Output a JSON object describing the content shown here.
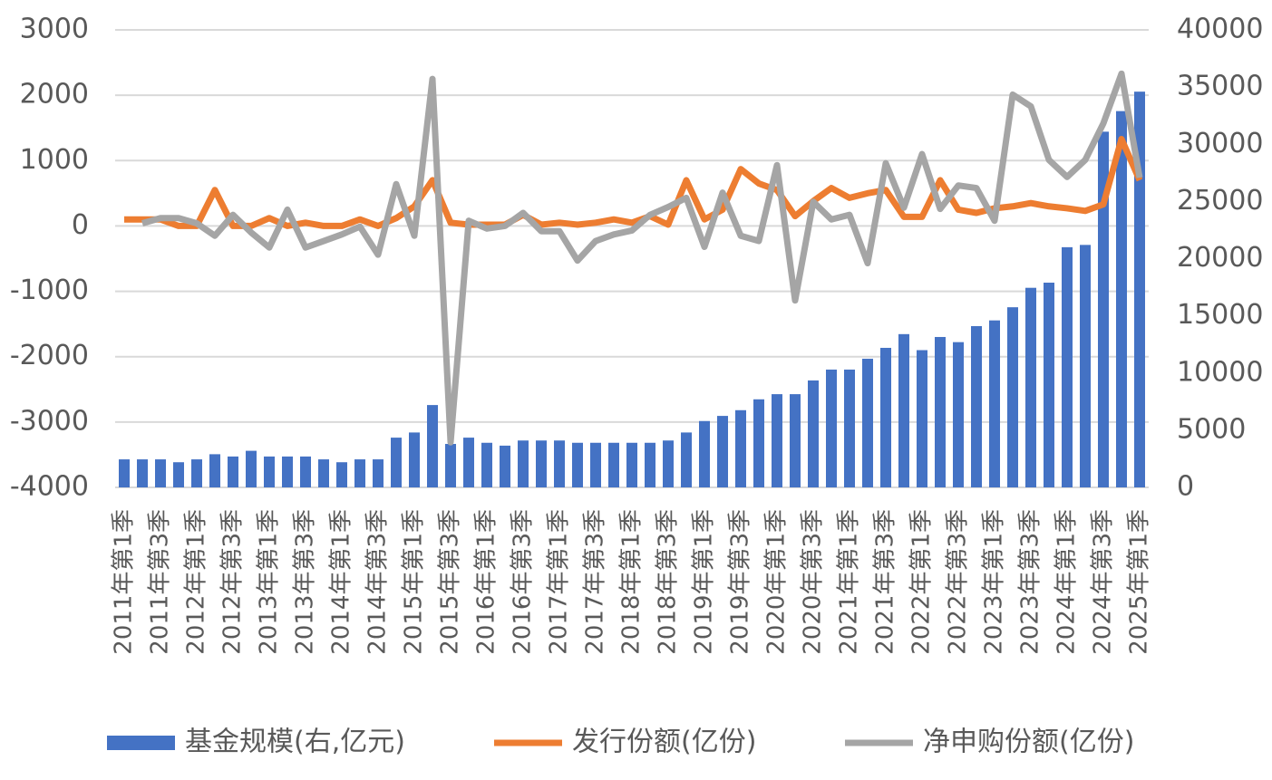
{
  "chart_data": {
    "type": "bar",
    "categories": [
      "2011年第1季",
      null,
      "2011年第3季",
      null,
      "2012年第1季",
      null,
      "2012年第3季",
      null,
      "2013年第1季",
      null,
      "2013年第3季",
      null,
      "2014年第1季",
      null,
      "2014年第3季",
      null,
      "2015年第1季",
      null,
      "2015年第3季",
      null,
      "2016年第1季",
      null,
      "2016年第3季",
      null,
      "2017年第1季",
      null,
      "2017年第3季",
      null,
      "2018年第1季",
      null,
      "2018年第3季",
      null,
      "2019年第1季",
      null,
      "2019年第3季",
      null,
      "2020年第1季",
      null,
      "2020年第3季",
      null,
      "2021年第1季",
      null,
      "2021年第3季",
      null,
      "2022年第1季",
      null,
      "2022年第3季",
      null,
      "2023年第1季",
      null,
      "2023年第3季",
      null,
      "2024年第1季",
      null,
      "2024年第3季",
      null,
      "2025年第1季"
    ],
    "series": [
      {
        "name": "基金规模(右,亿元)",
        "type": "bar",
        "axis": "y2",
        "color": "#4472c4",
        "values": [
          2450,
          2450,
          2450,
          2200,
          2450,
          2900,
          2700,
          3200,
          2700,
          2700,
          2700,
          2450,
          2200,
          2450,
          2450,
          4350,
          4800,
          7200,
          3800,
          4350,
          3900,
          3650,
          4100,
          4100,
          4100,
          3900,
          3900,
          3900,
          3900,
          3900,
          4100,
          4800,
          5800,
          6250,
          6750,
          7700,
          8150,
          8150,
          9350,
          10300,
          10300,
          11250,
          12200,
          13400,
          12000,
          13150,
          12700,
          14100,
          14600,
          15750,
          17450,
          17900,
          21000,
          21200,
          31100,
          32900,
          34600
        ]
      },
      {
        "name": "发行份额(亿份)",
        "type": "line",
        "color": "#ed7d31",
        "values": [
          100,
          100,
          100,
          0,
          0,
          550,
          0,
          0,
          120,
          0,
          50,
          0,
          0,
          100,
          0,
          120,
          300,
          700,
          50,
          20,
          20,
          20,
          170,
          20,
          50,
          20,
          50,
          100,
          50,
          150,
          20,
          700,
          100,
          250,
          870,
          650,
          550,
          150,
          380,
          580,
          430,
          500,
          550,
          140,
          140,
          700,
          250,
          200,
          270,
          300,
          350,
          300,
          270,
          230,
          330,
          1330,
          700
        ]
      },
      {
        "name": "净申购份额(亿份)",
        "type": "line",
        "color": "#a5a5a5",
        "values": [
          null,
          40,
          120,
          120,
          40,
          -150,
          170,
          -100,
          -330,
          250,
          -330,
          -230,
          -130,
          -10,
          -440,
          640,
          -150,
          2250,
          -3310,
          80,
          -40,
          0,
          200,
          -80,
          -80,
          -530,
          -230,
          -130,
          -70,
          170,
          290,
          430,
          -320,
          510,
          -150,
          -230,
          930,
          -1140,
          370,
          100,
          170,
          -570,
          960,
          280,
          1100,
          260,
          620,
          580,
          80,
          2010,
          1830,
          1010,
          750,
          1010,
          1570,
          2330,
          740
        ]
      }
    ],
    "ylim": [
      -4000,
      3000
    ],
    "yticks": [
      -4000,
      -3000,
      -2000,
      -1000,
      0,
      1000,
      2000,
      3000
    ],
    "y2lim": [
      0,
      40000
    ],
    "y2ticks": [
      0,
      5000,
      10000,
      15000,
      20000,
      25000,
      30000,
      35000,
      40000
    ],
    "grid": true,
    "legend": "bottom"
  }
}
